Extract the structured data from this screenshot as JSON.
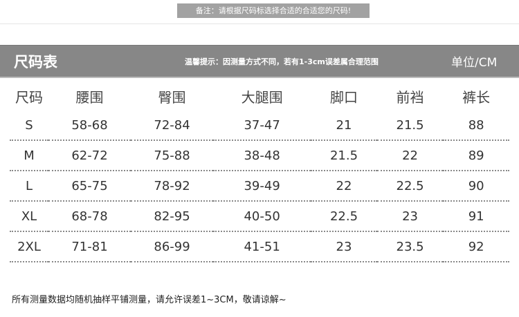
{
  "note": "备注：请根据尺码标选择合适的合适您的尺码!",
  "header": {
    "title": "尺码表",
    "tip": "温馨提示：因测量方式不同，若有1-3cm误差属合理范围",
    "unit": "单位/CM"
  },
  "table": {
    "columns": [
      "尺码",
      "腰围",
      "臀围",
      "大腿围",
      "脚口",
      "前裆",
      "裤长"
    ],
    "rows": [
      [
        "S",
        "58-68",
        "72-84",
        "37-47",
        "21",
        "21.5",
        "88"
      ],
      [
        "M",
        "62-72",
        "75-88",
        "38-48",
        "21.5",
        "22",
        "89"
      ],
      [
        "L",
        "65-75",
        "78-92",
        "39-49",
        "22",
        "22.5",
        "90"
      ],
      [
        "XL",
        "68-78",
        "82-95",
        "40-50",
        "22.5",
        "23",
        "91"
      ],
      [
        "2XL",
        "71-81",
        "86-99",
        "41-51",
        "23",
        "23.5",
        "92"
      ]
    ]
  },
  "footer": "所有测量数据均随机抽样平铺测量，请允许误差1~3CM，敬请谅解~"
}
